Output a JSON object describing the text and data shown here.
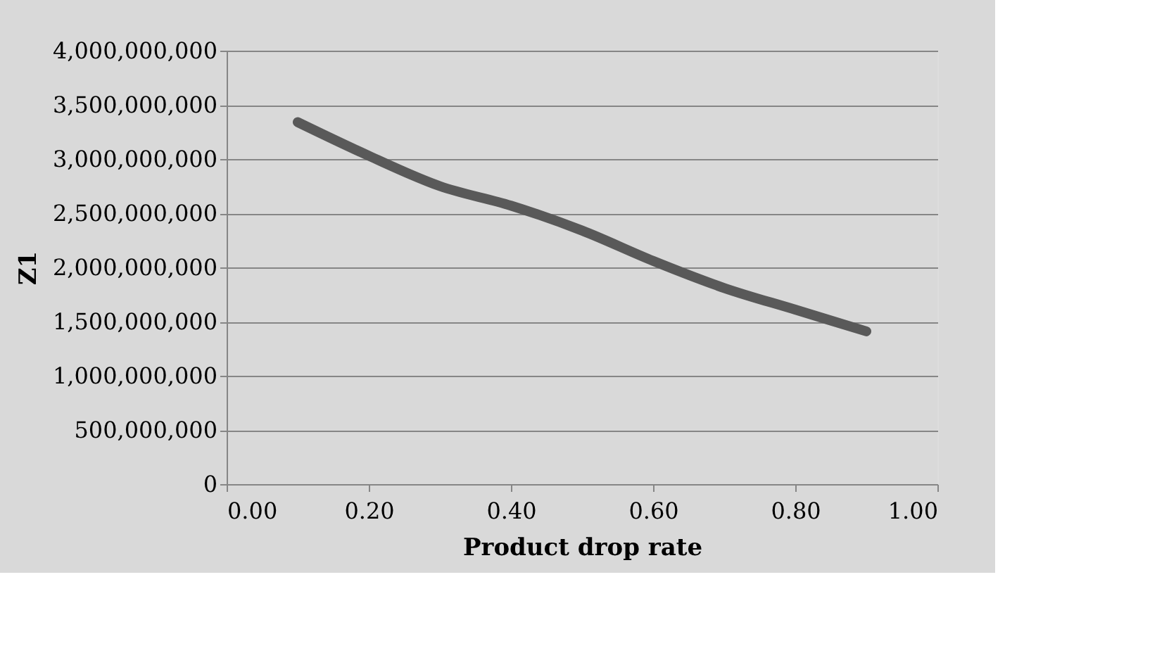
{
  "chart_data": {
    "type": "line",
    "xlabel": "Product drop rate",
    "ylabel": "Z1",
    "x": [
      0.1,
      0.2,
      0.3,
      0.4,
      0.5,
      0.6,
      0.7,
      0.8,
      0.9
    ],
    "series": [
      {
        "color": "#595959",
        "values": [
          3340000000,
          3030000000,
          2750000000,
          2570000000,
          2340000000,
          2060000000,
          1810000000,
          1610000000,
          1410000000
        ]
      }
    ],
    "xlim": [
      0,
      1
    ],
    "xticks": [
      {
        "value": 0,
        "label": "0.00"
      },
      {
        "value": 0.2,
        "label": "0.20"
      },
      {
        "value": 0.4,
        "label": "0.40"
      },
      {
        "value": 0.6,
        "label": "0.60"
      },
      {
        "value": 0.8,
        "label": "0.80"
      },
      {
        "value": 1,
        "label": "1.00"
      }
    ],
    "ylim": [
      0,
      4000000000
    ],
    "yticks": [
      {
        "value": 0,
        "label": "0"
      },
      {
        "value": 500000000,
        "label": "500,000,000"
      },
      {
        "value": 1000000000,
        "label": "1,000,000,000"
      },
      {
        "value": 1500000000,
        "label": "1,500,000,000"
      },
      {
        "value": 2000000000,
        "label": "2,000,000,000"
      },
      {
        "value": 2500000000,
        "label": "2,500,000,000"
      },
      {
        "value": 3000000000,
        "label": "3,000,000,000"
      },
      {
        "value": 3500000000,
        "label": "3,500,000,000"
      },
      {
        "value": 4000000000,
        "label": "4,000,000,000"
      }
    ],
    "grid": "y",
    "marker": "none",
    "line_style": "solid",
    "legend": false
  }
}
